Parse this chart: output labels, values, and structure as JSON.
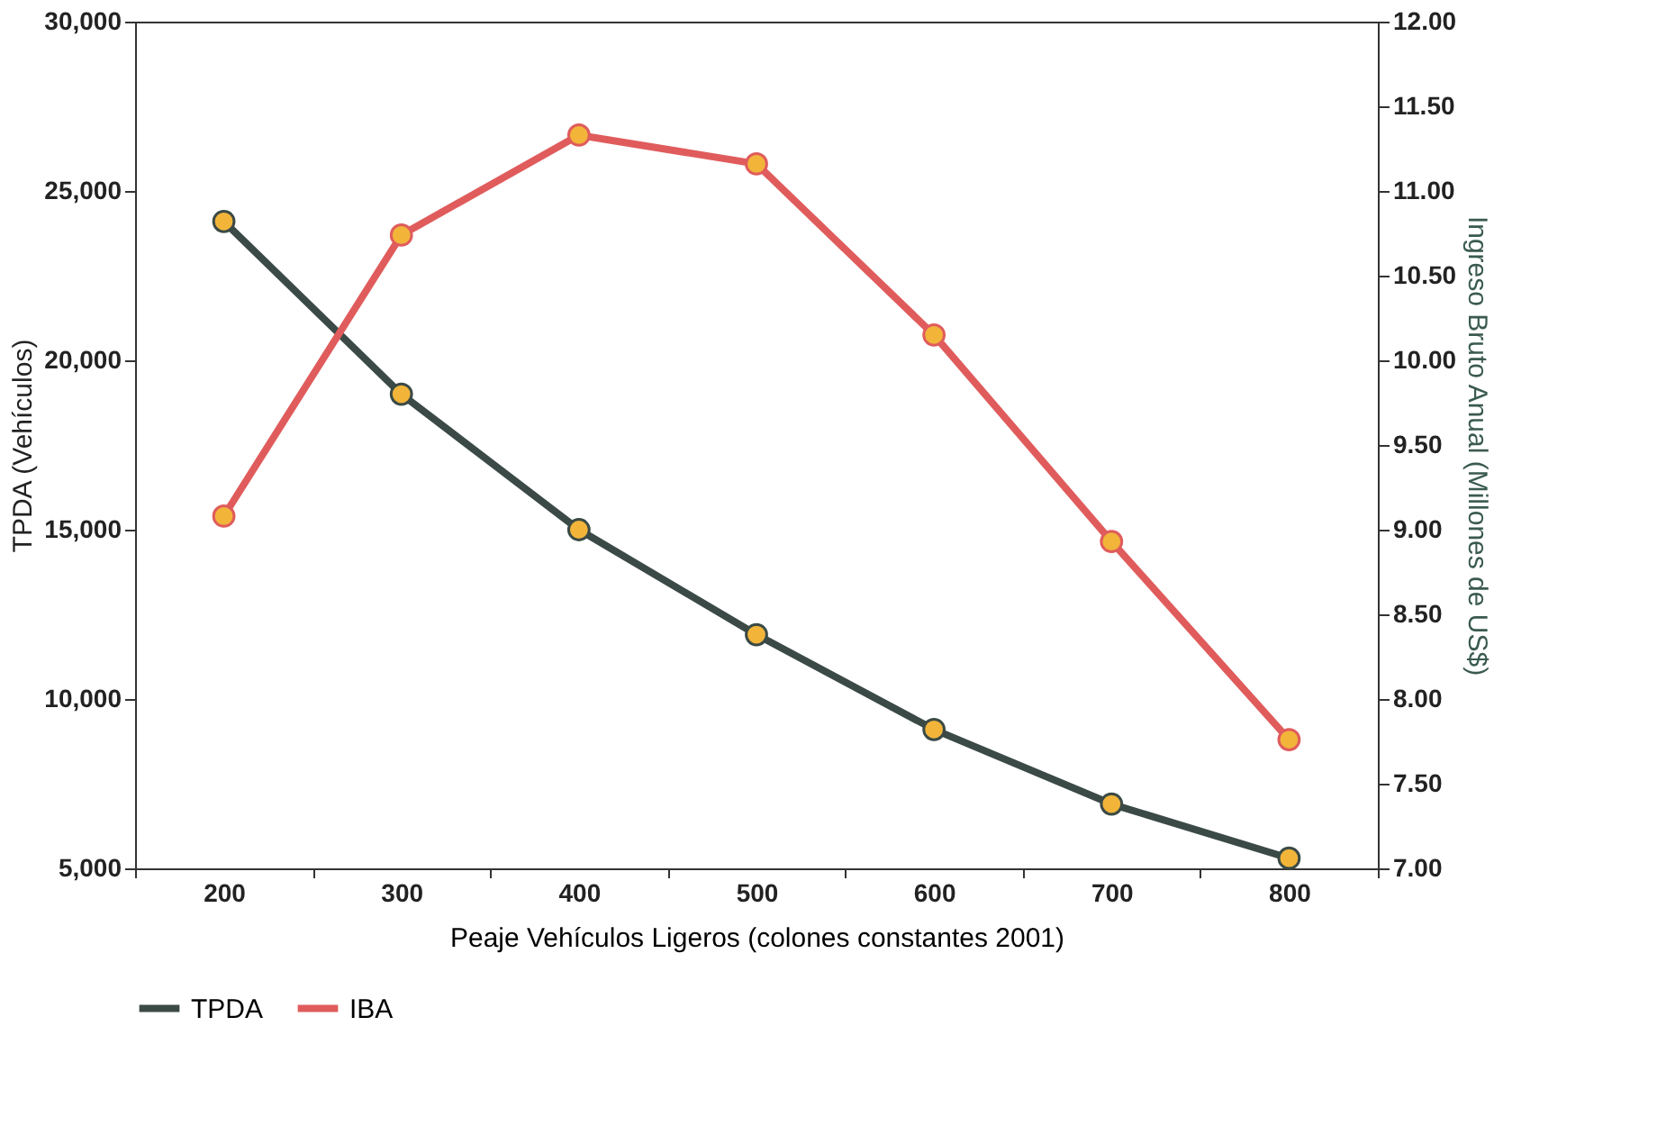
{
  "chart_data": {
    "type": "line",
    "xlabel": "Peaje Vehículos Ligeros (colones constantes 2001)",
    "ylabel": "TPDA (Vehículos)",
    "y2label": "Ingreso Bruto Anual (Millones de US$)",
    "categories": [
      "200",
      "300",
      "400",
      "500",
      "600",
      "700",
      "800"
    ],
    "series": [
      {
        "name": "TPDA",
        "color": "#3b4a46",
        "values": [
          24100,
          19000,
          15000,
          11900,
          9100,
          6900,
          5300
        ]
      },
      {
        "name": "IBA",
        "color": "#e05c5c",
        "axis": "y2",
        "values": [
          9.08,
          10.74,
          11.33,
          11.16,
          10.15,
          8.93,
          7.76
        ]
      }
    ],
    "ylim": [
      5000,
      30000
    ],
    "yticks": [
      {
        "value": 5000,
        "label": "5,000"
      },
      {
        "value": 10000,
        "label": "10,000"
      },
      {
        "value": 15000,
        "label": "15,000"
      },
      {
        "value": 20000,
        "label": "20,000"
      },
      {
        "value": 25000,
        "label": "25,000"
      },
      {
        "value": 30000,
        "label": "30,000"
      }
    ],
    "y2lim": [
      7,
      12
    ],
    "y2ticks": [
      {
        "value": 7,
        "label": "7.00"
      },
      {
        "value": 7.5,
        "label": "7.50"
      },
      {
        "value": 8,
        "label": "8.00"
      },
      {
        "value": 8.5,
        "label": "8.50"
      },
      {
        "value": 9,
        "label": "9.00"
      },
      {
        "value": 9.5,
        "label": "9.50"
      },
      {
        "value": 10,
        "label": "10.00"
      },
      {
        "value": 10.5,
        "label": "10.50"
      },
      {
        "value": 11,
        "label": "11.00"
      },
      {
        "value": 11.5,
        "label": "11.50"
      },
      {
        "value": 12,
        "label": "12.00"
      }
    ],
    "grid": false,
    "legend": "bottom",
    "marker": "circle",
    "line_style": "solid"
  }
}
